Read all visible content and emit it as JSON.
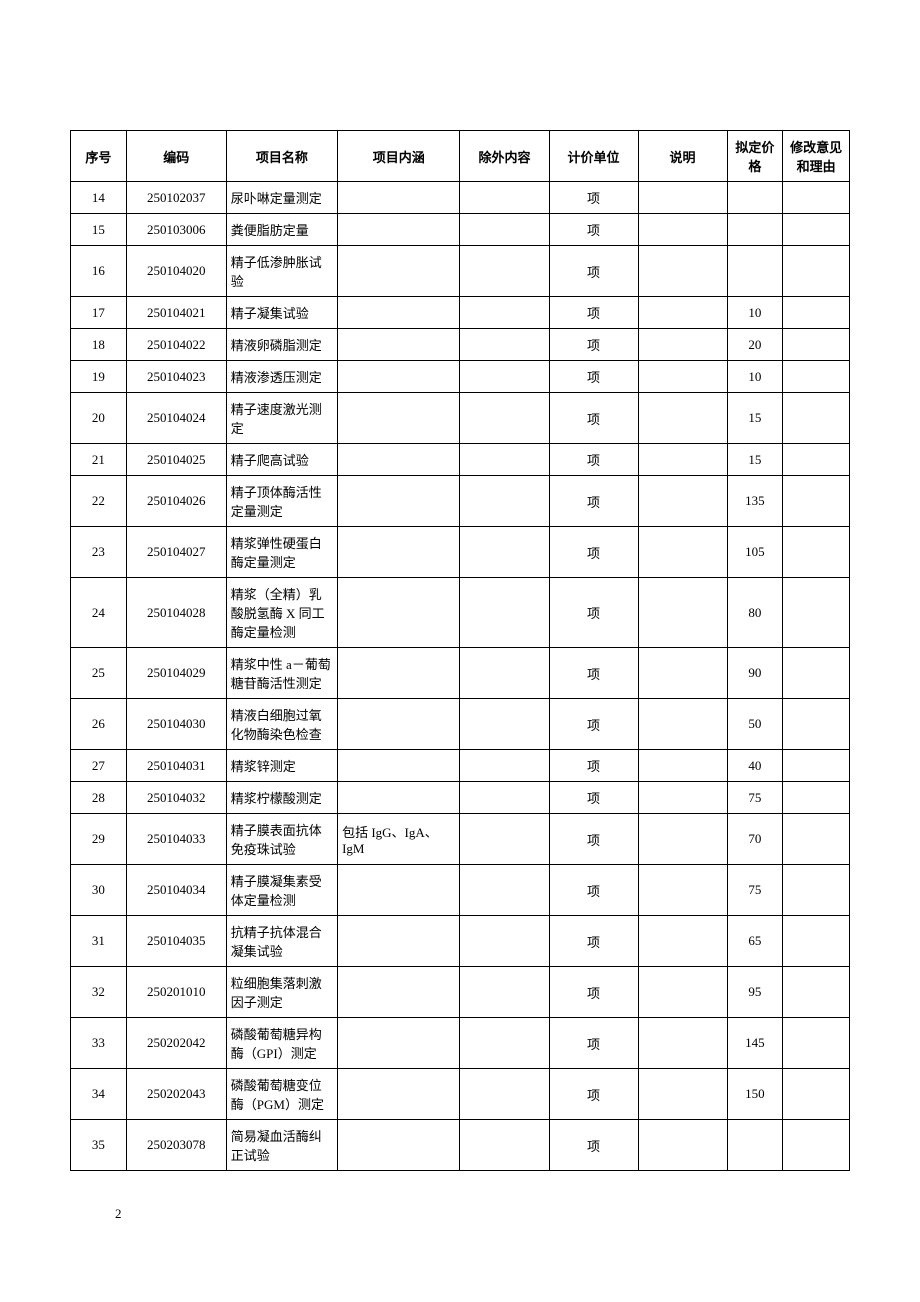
{
  "headers": {
    "seq": "序号",
    "code": "编码",
    "name": "项目名称",
    "content": "项目内涵",
    "exclude": "除外内容",
    "unit": "计价单位",
    "desc": "说明",
    "price": "拟定价格",
    "comment": "修改意见和理由"
  },
  "rows": [
    {
      "seq": "14",
      "code": "250102037",
      "name": "尿卟啉定量测定",
      "content": "",
      "exclude": "",
      "unit": "项",
      "desc": "",
      "price": "",
      "comment": ""
    },
    {
      "seq": "15",
      "code": "250103006",
      "name": "粪便脂肪定量",
      "content": "",
      "exclude": "",
      "unit": "项",
      "desc": "",
      "price": "",
      "comment": ""
    },
    {
      "seq": "16",
      "code": "250104020",
      "name": "精子低渗肿胀试验",
      "content": "",
      "exclude": "",
      "unit": "项",
      "desc": "",
      "price": "",
      "comment": ""
    },
    {
      "seq": "17",
      "code": "250104021",
      "name": "精子凝集试验",
      "content": "",
      "exclude": "",
      "unit": "项",
      "desc": "",
      "price": "10",
      "comment": ""
    },
    {
      "seq": "18",
      "code": "250104022",
      "name": "精液卵磷脂测定",
      "content": "",
      "exclude": "",
      "unit": "项",
      "desc": "",
      "price": "20",
      "comment": ""
    },
    {
      "seq": "19",
      "code": "250104023",
      "name": "精液渗透压测定",
      "content": "",
      "exclude": "",
      "unit": "项",
      "desc": "",
      "price": "10",
      "comment": ""
    },
    {
      "seq": "20",
      "code": "250104024",
      "name": "精子速度激光测定",
      "content": "",
      "exclude": "",
      "unit": "项",
      "desc": "",
      "price": "15",
      "comment": ""
    },
    {
      "seq": "21",
      "code": "250104025",
      "name": "精子爬高试验",
      "content": "",
      "exclude": "",
      "unit": "项",
      "desc": "",
      "price": "15",
      "comment": ""
    },
    {
      "seq": "22",
      "code": "250104026",
      "name": "精子顶体酶活性定量测定",
      "content": "",
      "exclude": "",
      "unit": "项",
      "desc": "",
      "price": "135",
      "comment": ""
    },
    {
      "seq": "23",
      "code": "250104027",
      "name": "精浆弹性硬蛋白酶定量测定",
      "content": "",
      "exclude": "",
      "unit": "项",
      "desc": "",
      "price": "105",
      "comment": ""
    },
    {
      "seq": "24",
      "code": "250104028",
      "name": "精浆（全精）乳酸脱氢酶 X 同工酶定量检测",
      "content": "",
      "exclude": "",
      "unit": "项",
      "desc": "",
      "price": "80",
      "comment": ""
    },
    {
      "seq": "25",
      "code": "250104029",
      "name": "精浆中性 a－葡萄糖苷酶活性测定",
      "content": "",
      "exclude": "",
      "unit": "项",
      "desc": "",
      "price": "90",
      "comment": ""
    },
    {
      "seq": "26",
      "code": "250104030",
      "name": "精液白细胞过氧化物酶染色检查",
      "content": "",
      "exclude": "",
      "unit": "项",
      "desc": "",
      "price": "50",
      "comment": ""
    },
    {
      "seq": "27",
      "code": "250104031",
      "name": "精浆锌测定",
      "content": "",
      "exclude": "",
      "unit": "项",
      "desc": "",
      "price": "40",
      "comment": ""
    },
    {
      "seq": "28",
      "code": "250104032",
      "name": "精浆柠檬酸测定",
      "content": "",
      "exclude": "",
      "unit": "项",
      "desc": "",
      "price": "75",
      "comment": ""
    },
    {
      "seq": "29",
      "code": "250104033",
      "name": "精子膜表面抗体免疫珠试验",
      "content": "包括 IgG、IgA、IgM",
      "exclude": "",
      "unit": "项",
      "desc": "",
      "price": "70",
      "comment": ""
    },
    {
      "seq": "30",
      "code": "250104034",
      "name": "精子膜凝集素受体定量检测",
      "content": "",
      "exclude": "",
      "unit": "项",
      "desc": "",
      "price": "75",
      "comment": ""
    },
    {
      "seq": "31",
      "code": "250104035",
      "name": "抗精子抗体混合凝集试验",
      "content": "",
      "exclude": "",
      "unit": "项",
      "desc": "",
      "price": "65",
      "comment": ""
    },
    {
      "seq": "32",
      "code": "250201010",
      "name": "粒细胞集落刺激因子测定",
      "content": "",
      "exclude": "",
      "unit": "项",
      "desc": "",
      "price": "95",
      "comment": ""
    },
    {
      "seq": "33",
      "code": "250202042",
      "name": "磷酸葡萄糖异构酶（GPI）测定",
      "content": "",
      "exclude": "",
      "unit": "项",
      "desc": "",
      "price": "145",
      "comment": ""
    },
    {
      "seq": "34",
      "code": "250202043",
      "name": "磷酸葡萄糖变位酶（PGM）测定",
      "content": "",
      "exclude": "",
      "unit": "项",
      "desc": "",
      "price": "150",
      "comment": ""
    },
    {
      "seq": "35",
      "code": "250203078",
      "name": "简易凝血活酶纠正试验",
      "content": "",
      "exclude": "",
      "unit": "项",
      "desc": "",
      "price": "",
      "comment": ""
    }
  ],
  "pageNumber": "2"
}
